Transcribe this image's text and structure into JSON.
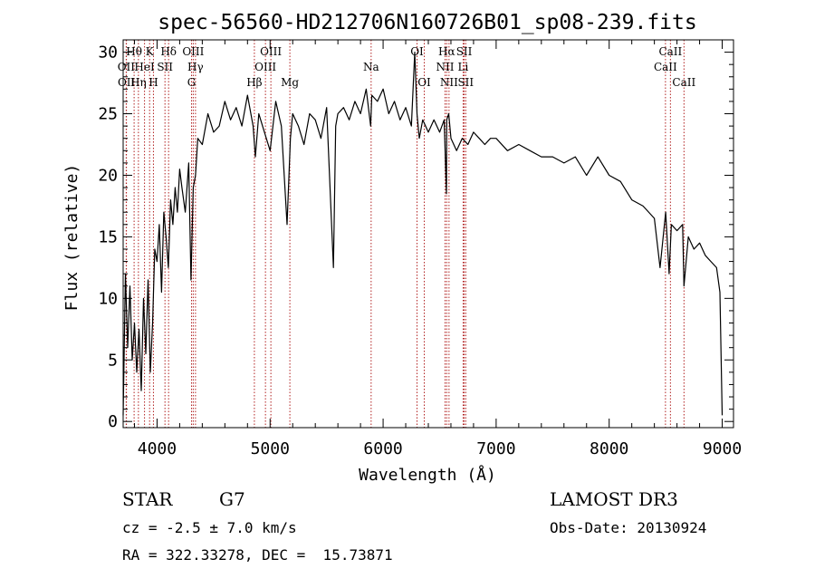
{
  "chart_data": {
    "type": "line",
    "title": "spec-56560-HD212706N160726B01_sp08-239.fits",
    "xlabel": "Wavelength (Å)",
    "ylabel": "Flux (relative)",
    "xlim": [
      3700,
      9100
    ],
    "ylim": [
      -0.5,
      31
    ],
    "xticks": [
      4000,
      5000,
      6000,
      7000,
      8000,
      9000
    ],
    "yticks": [
      0,
      5,
      10,
      15,
      20,
      25,
      30
    ],
    "grid": false,
    "series": [
      {
        "name": "spectrum",
        "x": [
          3700,
          3720,
          3740,
          3760,
          3780,
          3800,
          3820,
          3840,
          3860,
          3880,
          3900,
          3920,
          3940,
          3960,
          3980,
          4000,
          4020,
          4040,
          4060,
          4080,
          4100,
          4120,
          4140,
          4160,
          4180,
          4200,
          4220,
          4250,
          4280,
          4300,
          4320,
          4340,
          4360,
          4400,
          4450,
          4500,
          4550,
          4600,
          4650,
          4700,
          4750,
          4800,
          4850,
          4870,
          4900,
          4950,
          5000,
          5050,
          5100,
          5150,
          5180,
          5200,
          5250,
          5300,
          5350,
          5400,
          5450,
          5500,
          5560,
          5580,
          5600,
          5650,
          5700,
          5750,
          5800,
          5850,
          5890,
          5900,
          5950,
          6000,
          6050,
          6100,
          6150,
          6200,
          6250,
          6280,
          6300,
          6320,
          6350,
          6400,
          6450,
          6500,
          6540,
          6560,
          6563,
          6580,
          6600,
          6650,
          6700,
          6750,
          6800,
          6850,
          6900,
          6950,
          7000,
          7100,
          7200,
          7300,
          7400,
          7500,
          7600,
          7700,
          7800,
          7900,
          8000,
          8100,
          8200,
          8300,
          8400,
          8450,
          8500,
          8530,
          8550,
          8600,
          8650,
          8662,
          8700,
          8750,
          8800,
          8850,
          8900,
          8950,
          8980,
          9000
        ],
        "values": [
          0.5,
          12.0,
          6.0,
          11.0,
          5.0,
          8.0,
          4.0,
          7.5,
          2.5,
          10.0,
          5.5,
          11.5,
          4.0,
          8.0,
          14.0,
          13.0,
          16.0,
          10.5,
          17.0,
          15.0,
          12.5,
          18.0,
          16.0,
          19.0,
          17.0,
          20.5,
          19.0,
          17.0,
          21.0,
          11.5,
          19.0,
          20.0,
          23.0,
          22.5,
          25.0,
          23.5,
          24.0,
          26.0,
          24.5,
          25.5,
          24.0,
          26.5,
          24.0,
          21.5,
          25.0,
          23.5,
          22.0,
          26.0,
          24.0,
          16.0,
          23.0,
          25.0,
          24.0,
          22.5,
          25.0,
          24.5,
          23.0,
          25.5,
          12.5,
          24.0,
          25.0,
          25.5,
          24.5,
          26.0,
          25.0,
          27.0,
          24.0,
          26.5,
          26.0,
          27.0,
          25.0,
          26.0,
          24.5,
          25.5,
          24.0,
          30.0,
          25.0,
          23.0,
          24.5,
          23.5,
          24.5,
          23.5,
          24.5,
          18.5,
          24.5,
          25.0,
          23.0,
          22.0,
          23.0,
          22.5,
          23.5,
          23.0,
          22.5,
          23.0,
          23.0,
          22.0,
          22.5,
          22.0,
          21.5,
          21.5,
          21.0,
          21.5,
          20.0,
          21.5,
          20.0,
          19.5,
          18.0,
          17.5,
          16.5,
          12.5,
          17.0,
          12.0,
          16.0,
          15.5,
          16.0,
          11.0,
          15.0,
          14.0,
          14.5,
          13.5,
          13.0,
          12.5,
          10.5,
          0.5
        ]
      }
    ],
    "lines": [
      {
        "name": "OII",
        "x": 3727,
        "row": 1
      },
      {
        "name": "OII",
        "x": 3729,
        "row": 2
      },
      {
        "name": "Hθ",
        "x": 3797,
        "row": 0
      },
      {
        "name": "Hη",
        "x": 3835,
        "row": 2
      },
      {
        "name": "HeI",
        "x": 3889,
        "row": 1
      },
      {
        "name": "K",
        "x": 3934,
        "row": 0
      },
      {
        "name": "H",
        "x": 3968,
        "row": 2
      },
      {
        "name": "SII",
        "x": 4070,
        "row": 1
      },
      {
        "name": "Hδ",
        "x": 4102,
        "row": 0
      },
      {
        "name": "G",
        "x": 4305,
        "row": 2
      },
      {
        "name": "OIII",
        "x": 4320,
        "row": 0
      },
      {
        "name": "Hγ",
        "x": 4340,
        "row": 1
      },
      {
        "name": "Hβ",
        "x": 4861,
        "row": 2
      },
      {
        "name": "OIII",
        "x": 4959,
        "row": 1
      },
      {
        "name": "OIII",
        "x": 5007,
        "row": 0
      },
      {
        "name": "Mg",
        "x": 5175,
        "row": 2
      },
      {
        "name": "Na",
        "x": 5894,
        "row": 1
      },
      {
        "name": "OI",
        "x": 6300,
        "row": 0
      },
      {
        "name": "OI",
        "x": 6364,
        "row": 2
      },
      {
        "name": "NII",
        "x": 6548,
        "row": 1
      },
      {
        "name": "Hα",
        "x": 6563,
        "row": 0
      },
      {
        "name": "NII",
        "x": 6583,
        "row": 2
      },
      {
        "name": "Li",
        "x": 6708,
        "row": 1
      },
      {
        "name": "SII",
        "x": 6717,
        "row": 0
      },
      {
        "name": "SII",
        "x": 6731,
        "row": 2
      },
      {
        "name": "CaII",
        "x": 8498,
        "row": 1
      },
      {
        "name": "CaII",
        "x": 8542,
        "row": 0
      },
      {
        "name": "CaII",
        "x": 8662,
        "row": 2
      }
    ]
  },
  "info": {
    "class_label": "STAR",
    "subclass": "G7",
    "survey": "LAMOST DR3",
    "cz": "cz = -2.5 ± 7.0 km/s",
    "obs_date": "Obs-Date: 20130924",
    "coords": "RA = 322.33278, DEC =  15.73871"
  },
  "colors": {
    "line_marker": "#b22222",
    "spectrum": "#000000",
    "axes": "#000000"
  }
}
